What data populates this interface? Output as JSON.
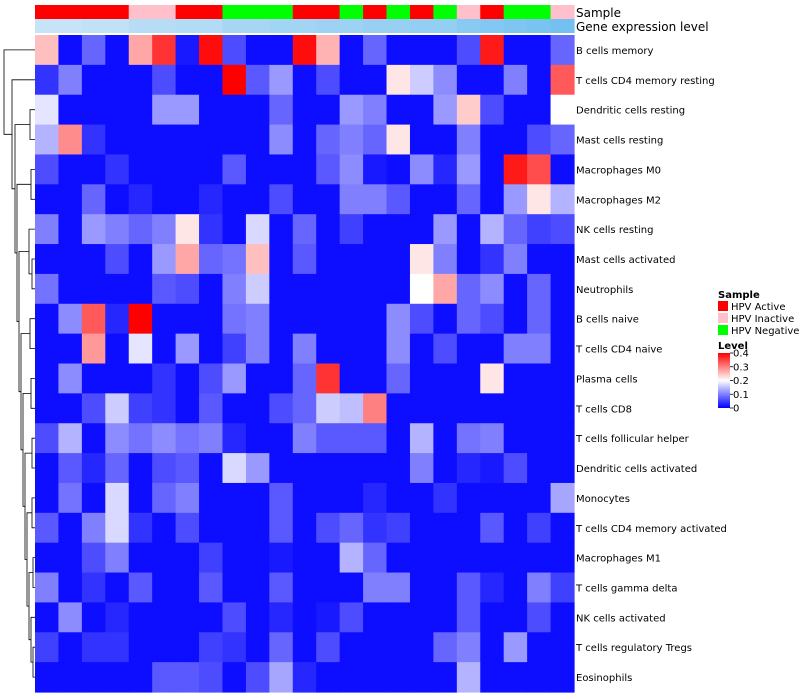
{
  "chart_data": {
    "type": "heatmap",
    "annotation_labels": {
      "sample": "Sample",
      "level": "Gene expression level"
    },
    "rows": [
      "B cells memory",
      "T cells CD4 memory resting",
      "Dendritic cells resting",
      "Mast cells resting",
      "Macrophages M0",
      "Macrophages M2",
      "NK cells resting",
      "Mast cells activated",
      "Neutrophils",
      "B cells naive",
      "T cells CD4 naive",
      "Plasma cells",
      "T cells CD8",
      "T cells follicular helper",
      "Dendritic cells activated",
      "Monocytes",
      "T cells CD4 memory activated",
      "Macrophages M1",
      "T cells gamma delta",
      "NK cells activated",
      "T cells regulatory  Tregs",
      "Eosinophils"
    ],
    "sample_groups": [
      "HPV Active",
      "HPV Active",
      "HPV Active",
      "HPV Active",
      "HPV Inactive",
      "HPV Inactive",
      "HPV Active",
      "HPV Active",
      "HPV Negative",
      "HPV Negative",
      "HPV Negative",
      "HPV Active",
      "HPV Active",
      "HPV Negative",
      "HPV Active",
      "HPV Negative",
      "HPV Active",
      "HPV Negative",
      "HPV Inactive",
      "HPV Active",
      "HPV Negative",
      "HPV Negative",
      "HPV Inactive"
    ],
    "gene_expression_level": [
      0.02,
      0.02,
      0.03,
      0.03,
      0.05,
      0.05,
      0.06,
      0.06,
      0.08,
      0.08,
      0.09,
      0.09,
      0.1,
      0.1,
      0.11,
      0.11,
      0.12,
      0.12,
      0.14,
      0.15,
      0.16,
      0.17,
      0.18
    ],
    "values": [
      [
        0.25,
        0.01,
        0.08,
        0.01,
        0.27,
        0.36,
        0.02,
        0.39,
        0.06,
        0.01,
        0.01,
        0.39,
        0.26,
        0.01,
        0.08,
        0.01,
        0.01,
        0.01,
        0.06,
        0.38,
        0.01,
        0.01,
        0.08
      ],
      [
        0.04,
        0.1,
        0.01,
        0.01,
        0.01,
        0.06,
        0.01,
        0.01,
        0.4,
        0.07,
        0.12,
        0.01,
        0.06,
        0.01,
        0.01,
        0.22,
        0.16,
        0.11,
        0.01,
        0.01,
        0.1,
        0.01,
        0.33
      ],
      [
        0.18,
        0.01,
        0.01,
        0.01,
        0.01,
        0.12,
        0.12,
        0.01,
        0.01,
        0.01,
        0.08,
        0.01,
        0.01,
        0.12,
        0.1,
        0.01,
        0.01,
        0.12,
        0.24,
        0.06,
        0.01,
        0.01,
        0.2
      ],
      [
        0.14,
        0.29,
        0.04,
        0.01,
        0.01,
        0.01,
        0.01,
        0.01,
        0.01,
        0.01,
        0.11,
        0.01,
        0.08,
        0.1,
        0.08,
        0.22,
        0.01,
        0.01,
        0.1,
        0.01,
        0.01,
        0.06,
        0.08
      ],
      [
        0.06,
        0.01,
        0.01,
        0.04,
        0.01,
        0.01,
        0.01,
        0.01,
        0.07,
        0.01,
        0.01,
        0.01,
        0.07,
        0.11,
        0.02,
        0.01,
        0.11,
        0.03,
        0.12,
        0.01,
        0.38,
        0.34,
        0.01
      ],
      [
        0.01,
        0.01,
        0.08,
        0.01,
        0.03,
        0.01,
        0.01,
        0.03,
        0.01,
        0.01,
        0.06,
        0.01,
        0.01,
        0.1,
        0.1,
        0.07,
        0.01,
        0.01,
        0.08,
        0.01,
        0.12,
        0.22,
        0.14
      ],
      [
        0.1,
        0.01,
        0.12,
        0.1,
        0.08,
        0.1,
        0.22,
        0.04,
        0.01,
        0.17,
        0.01,
        0.08,
        0.01,
        0.05,
        0.01,
        0.01,
        0.01,
        0.12,
        0.01,
        0.14,
        0.08,
        0.05,
        0.06
      ],
      [
        0.01,
        0.01,
        0.01,
        0.06,
        0.01,
        0.12,
        0.27,
        0.08,
        0.09,
        0.25,
        0.01,
        0.07,
        0.01,
        0.01,
        0.01,
        0.01,
        0.22,
        0.1,
        0.01,
        0.04,
        0.1,
        0.01,
        0.01
      ],
      [
        0.09,
        0.01,
        0.01,
        0.01,
        0.01,
        0.07,
        0.06,
        0.01,
        0.1,
        0.16,
        0.01,
        0.01,
        0.01,
        0.01,
        0.01,
        0.01,
        0.2,
        0.27,
        0.08,
        0.11,
        0.01,
        0.08,
        0.01
      ],
      [
        0.01,
        0.11,
        0.33,
        0.03,
        0.4,
        0.01,
        0.01,
        0.01,
        0.09,
        0.1,
        0.01,
        0.01,
        0.01,
        0.01,
        0.01,
        0.11,
        0.06,
        0.01,
        0.08,
        0.06,
        0.01,
        0.08,
        0.01
      ],
      [
        0.01,
        0.01,
        0.28,
        0.01,
        0.18,
        0.01,
        0.12,
        0.01,
        0.05,
        0.1,
        0.01,
        0.1,
        0.01,
        0.01,
        0.01,
        0.11,
        0.01,
        0.06,
        0.01,
        0.01,
        0.1,
        0.1,
        0.01
      ],
      [
        0.01,
        0.11,
        0.01,
        0.01,
        0.01,
        0.04,
        0.01,
        0.06,
        0.12,
        0.01,
        0.01,
        0.08,
        0.36,
        0.01,
        0.01,
        0.08,
        0.01,
        0.01,
        0.01,
        0.22,
        0.01,
        0.01,
        0.01
      ],
      [
        0.01,
        0.01,
        0.06,
        0.16,
        0.05,
        0.04,
        0.01,
        0.07,
        0.01,
        0.01,
        0.06,
        0.08,
        0.16,
        0.15,
        0.3,
        0.01,
        0.01,
        0.01,
        0.01,
        0.01,
        0.01,
        0.01,
        0.01
      ],
      [
        0.06,
        0.14,
        0.01,
        0.11,
        0.09,
        0.11,
        0.09,
        0.1,
        0.03,
        0.01,
        0.01,
        0.1,
        0.07,
        0.07,
        0.07,
        0.01,
        0.14,
        0.01,
        0.09,
        0.1,
        0.01,
        0.01,
        0.01
      ],
      [
        0.01,
        0.07,
        0.03,
        0.08,
        0.01,
        0.06,
        0.07,
        0.01,
        0.17,
        0.12,
        0.01,
        0.01,
        0.01,
        0.01,
        0.01,
        0.01,
        0.1,
        0.01,
        0.03,
        0.02,
        0.06,
        0.01,
        0.01
      ],
      [
        0.01,
        0.09,
        0.01,
        0.17,
        0.01,
        0.08,
        0.1,
        0.01,
        0.01,
        0.01,
        0.07,
        0.01,
        0.01,
        0.01,
        0.03,
        0.01,
        0.01,
        0.04,
        0.01,
        0.01,
        0.01,
        0.01,
        0.13
      ],
      [
        0.07,
        0.01,
        0.1,
        0.17,
        0.04,
        0.01,
        0.06,
        0.01,
        0.01,
        0.01,
        0.07,
        0.01,
        0.06,
        0.08,
        0.04,
        0.05,
        0.01,
        0.01,
        0.01,
        0.07,
        0.01,
        0.05,
        0.01
      ],
      [
        0.01,
        0.01,
        0.06,
        0.1,
        0.01,
        0.01,
        0.01,
        0.05,
        0.01,
        0.01,
        0.02,
        0.01,
        0.01,
        0.14,
        0.08,
        0.01,
        0.01,
        0.01,
        0.01,
        0.01,
        0.01,
        0.01,
        0.01
      ],
      [
        0.1,
        0.01,
        0.04,
        0.01,
        0.07,
        0.01,
        0.01,
        0.07,
        0.01,
        0.01,
        0.07,
        0.01,
        0.01,
        0.01,
        0.1,
        0.1,
        0.01,
        0.01,
        0.07,
        0.03,
        0.01,
        0.1,
        0.05
      ],
      [
        0.01,
        0.11,
        0.01,
        0.03,
        0.01,
        0.01,
        0.01,
        0.01,
        0.06,
        0.01,
        0.03,
        0.01,
        0.02,
        0.06,
        0.01,
        0.01,
        0.01,
        0.01,
        0.07,
        0.01,
        0.01,
        0.06,
        0.01
      ],
      [
        0.05,
        0.01,
        0.04,
        0.04,
        0.01,
        0.01,
        0.01,
        0.05,
        0.04,
        0.01,
        0.08,
        0.01,
        0.06,
        0.01,
        0.01,
        0.01,
        0.01,
        0.08,
        0.1,
        0.01,
        0.12,
        0.01,
        0.01
      ],
      [
        0.01,
        0.01,
        0.01,
        0.01,
        0.01,
        0.07,
        0.07,
        0.06,
        0.01,
        0.06,
        0.13,
        0.03,
        0.01,
        0.01,
        0.01,
        0.01,
        0.01,
        0.01,
        0.14,
        0.01,
        0.01,
        0.01,
        0.01
      ]
    ],
    "legend": {
      "sample_title": "Sample",
      "sample_entries": [
        {
          "label": "HPV Active",
          "color": "#ff0000"
        },
        {
          "label": "HPV Inactive",
          "color": "#ffc0cb"
        },
        {
          "label": "HPV Negative",
          "color": "#00ff00"
        }
      ],
      "level_title": "Level",
      "level_ticks": [
        {
          "label": "0.4",
          "value": 0.4
        },
        {
          "label": "0.3",
          "value": 0.3
        },
        {
          "label": "0.2",
          "value": 0.2
        },
        {
          "label": "0.1",
          "value": 0.1
        },
        {
          "label": "0",
          "value": 0
        }
      ],
      "range": [
        0,
        0.4
      ]
    },
    "colors": {
      "low": "#0000ff",
      "mid": "#ffffff",
      "high": "#ff0000",
      "level_light": "#c6e3f7",
      "level_dark": "#74c1f1"
    }
  }
}
